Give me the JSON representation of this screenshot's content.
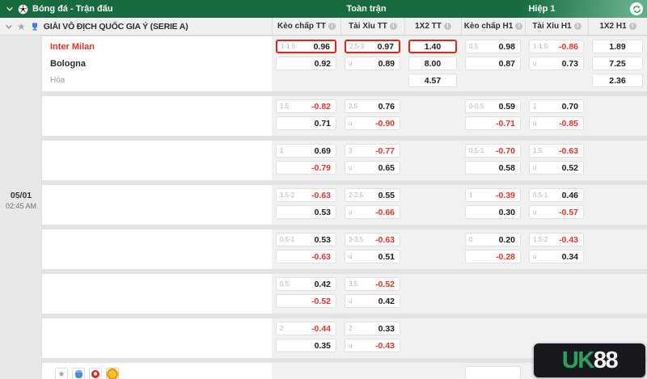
{
  "topbar": {
    "title": "Bóng đá - Trận đấu",
    "full_match_label": "Toàn trận",
    "first_half_label": "Hiệp 1"
  },
  "league": {
    "title": "GIẢI VÔ ĐỊCH QUỐC GIA Ý (SERIE A)",
    "columns": [
      "Kèo chấp TT",
      "Tài Xỉu TT",
      "1X2 TT",
      "Kèo chấp H1",
      "Tài Xỉu H1",
      "1X2 H1"
    ]
  },
  "match": {
    "date": "05/01",
    "time": "02:45 AM",
    "home": "Inter Milan",
    "away": "Bologna",
    "draw_label": "Hòa"
  },
  "odds_groups": [
    {
      "kc_tt": [
        {
          "hdp": "1-1.5",
          "val": "0.96",
          "hl": true
        },
        {
          "hdp": "",
          "val": "0.92"
        }
      ],
      "tx_tt": [
        {
          "hdp": "2.5-3",
          "val": "0.97",
          "hl": true
        },
        {
          "hdp": "u",
          "val": "0.89"
        }
      ],
      "x12_tt": [
        {
          "val": "1.40",
          "hl": true
        },
        {
          "val": "8.00"
        },
        {
          "val": "4.57"
        }
      ],
      "kc_h1": [
        {
          "hdp": "0.5",
          "val": "0.98"
        },
        {
          "hdp": "",
          "val": "0.87"
        }
      ],
      "tx_h1": [
        {
          "hdp": "1-1.5",
          "val": "-0.86",
          "neg": true
        },
        {
          "hdp": "u",
          "val": "0.73"
        }
      ],
      "x12_h1": [
        {
          "val": "1.89"
        },
        {
          "val": "7.25"
        },
        {
          "val": "2.36"
        }
      ]
    },
    {
      "kc_tt": [
        {
          "hdp": "1.5",
          "val": "-0.82",
          "neg": true
        },
        {
          "hdp": "",
          "val": "0.71"
        }
      ],
      "tx_tt": [
        {
          "hdp": "2.5",
          "val": "0.76"
        },
        {
          "hdp": "u",
          "val": "-0.90",
          "neg": true
        }
      ],
      "kc_h1": [
        {
          "hdp": "0-0.5",
          "val": "0.59"
        },
        {
          "hdp": "",
          "val": "-0.71",
          "neg": true
        }
      ],
      "tx_h1": [
        {
          "hdp": "1",
          "val": "0.70"
        },
        {
          "hdp": "u",
          "val": "-0.85",
          "neg": true
        }
      ]
    },
    {
      "kc_tt": [
        {
          "hdp": "1",
          "val": "0.69"
        },
        {
          "hdp": "",
          "val": "-0.79",
          "neg": true
        }
      ],
      "tx_tt": [
        {
          "hdp": "3",
          "val": "-0.77",
          "neg": true
        },
        {
          "hdp": "u",
          "val": "0.65"
        }
      ],
      "kc_h1": [
        {
          "hdp": "0.5-1",
          "val": "-0.70",
          "neg": true
        },
        {
          "hdp": "",
          "val": "0.58"
        }
      ],
      "tx_h1": [
        {
          "hdp": "1.5",
          "val": "-0.63",
          "neg": true
        },
        {
          "hdp": "u",
          "val": "0.52"
        }
      ]
    },
    {
      "kc_tt": [
        {
          "hdp": "1.5-2",
          "val": "-0.63",
          "neg": true
        },
        {
          "hdp": "",
          "val": "0.53"
        }
      ],
      "tx_tt": [
        {
          "hdp": "2-2.5",
          "val": "0.55"
        },
        {
          "hdp": "u",
          "val": "-0.66",
          "neg": true
        }
      ],
      "kc_h1": [
        {
          "hdp": "1",
          "val": "-0.39",
          "neg": true
        },
        {
          "hdp": "",
          "val": "0.30"
        }
      ],
      "tx_h1": [
        {
          "hdp": "0.5-1",
          "val": "0.46"
        },
        {
          "hdp": "u",
          "val": "-0.57",
          "neg": true
        }
      ]
    },
    {
      "kc_tt": [
        {
          "hdp": "0.5-1",
          "val": "0.53"
        },
        {
          "hdp": "",
          "val": "-0.63",
          "neg": true
        }
      ],
      "tx_tt": [
        {
          "hdp": "3-3.5",
          "val": "-0.63",
          "neg": true
        },
        {
          "hdp": "u",
          "val": "0.51"
        }
      ],
      "kc_h1": [
        {
          "hdp": "0",
          "val": "0.20"
        },
        {
          "hdp": "",
          "val": "-0.28",
          "neg": true
        }
      ],
      "tx_h1": [
        {
          "hdp": "1.5-2",
          "val": "-0.43",
          "neg": true
        },
        {
          "hdp": "u",
          "val": "0.34"
        }
      ]
    },
    {
      "kc_tt": [
        {
          "hdp": "0.5",
          "val": "0.42"
        },
        {
          "hdp": "",
          "val": "-0.52",
          "neg": true
        }
      ],
      "tx_tt": [
        {
          "hdp": "3.5",
          "val": "-0.52",
          "neg": true
        },
        {
          "hdp": "u",
          "val": "0.42"
        }
      ]
    },
    {
      "kc_tt": [
        {
          "hdp": "2",
          "val": "-0.44",
          "neg": true
        },
        {
          "hdp": "",
          "val": "0.35"
        }
      ],
      "tx_tt": [
        {
          "hdp": "2",
          "val": "0.33"
        },
        {
          "hdp": "u",
          "val": "-0.43",
          "neg": true
        }
      ]
    }
  ],
  "next_row_partial": {
    "tool_icons": [
      "favorite-star-icon",
      "stats-icon",
      "hot-icon",
      "coin-icon"
    ],
    "kc_h1": [
      {
        "hdp": "",
        "val": ""
      }
    ]
  },
  "footer": {
    "logo_part_green": "UK",
    "logo_part_white": "88"
  },
  "colors": {
    "header_green": "#176b3e",
    "negative_red": "#e2322a",
    "highlight_border": "#e0241b",
    "home_team_red": "#e2322a",
    "logo_green": "#2f9e63",
    "logo_bg": "#17191c"
  }
}
